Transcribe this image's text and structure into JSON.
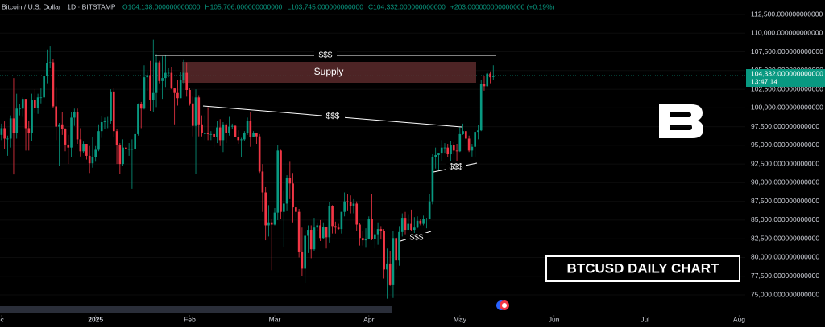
{
  "header": {
    "symbol": "Bitcoin / U.S. Dollar · 1D · BITSTAMP",
    "ohlc": [
      "O104,138.000000000000",
      "H105,706.000000000000",
      "L103,745.000000000000",
      "C104,332.000000000000",
      "+203.000000000000000 (+0.19%)"
    ]
  },
  "price_tag": {
    "price": "104,332.000000000000",
    "countdown": "13:47:14"
  },
  "annotations": {
    "liquidity": [
      "$$$",
      "$$$",
      "$$$",
      "$$$"
    ],
    "zone": "Supply",
    "badge": "BTCUSD DAILY CHART"
  },
  "chart_data": {
    "type": "candlestick",
    "up_color": "#089981",
    "down_color": "#f23645",
    "ylim": [
      75000,
      112500
    ],
    "yticks": [
      {
        "value": 75000,
        "label": "75,000.000000000000"
      },
      {
        "value": 77500,
        "label": "77,500.000000000000"
      },
      {
        "value": 80000,
        "label": "80,000.000000000000"
      },
      {
        "value": 82500,
        "label": "82,500.000000000000"
      },
      {
        "value": 85000,
        "label": "85,000.000000000000"
      },
      {
        "value": 87500,
        "label": "87,500.000000000000"
      },
      {
        "value": 90000,
        "label": "90,000.000000000000"
      },
      {
        "value": 92500,
        "label": "92,500.000000000000"
      },
      {
        "value": 95000,
        "label": "95,000.000000000000"
      },
      {
        "value": 97500,
        "label": "97,500.000000000000"
      },
      {
        "value": 100000,
        "label": "100,000.000000000000"
      },
      {
        "value": 102500,
        "label": "102,500.000000000000"
      },
      {
        "value": 105000,
        "label": "105,000.000000000000"
      },
      {
        "value": 107500,
        "label": "107,500.000000000000"
      },
      {
        "value": 110000,
        "label": "110,000.000000000000"
      },
      {
        "value": 112500,
        "label": "112,500.000000000000"
      }
    ],
    "xlim": [
      -0.5,
      245
    ],
    "xticks": [
      {
        "value": 0,
        "label": "ec"
      },
      {
        "value": 31,
        "label": "2025"
      },
      {
        "value": 62,
        "label": "Feb"
      },
      {
        "value": 90,
        "label": "Mar"
      },
      {
        "value": 121,
        "label": "Apr"
      },
      {
        "value": 151,
        "label": "May"
      },
      {
        "value": 182,
        "label": "Jun"
      },
      {
        "value": 212,
        "label": "Jul"
      },
      {
        "value": 243,
        "label": "Aug"
      }
    ],
    "last_price": 104332,
    "candles": [
      [
        96400,
        97900,
        95700,
        97300
      ],
      [
        97300,
        98200,
        94500,
        95900
      ],
      [
        95900,
        96300,
        93600,
        95900
      ],
      [
        95900,
        99000,
        94700,
        98600
      ],
      [
        98600,
        104000,
        91100,
        96600
      ],
      [
        96600,
        101900,
        95900,
        99900
      ],
      [
        99900,
        100500,
        99000,
        99900
      ],
      [
        99900,
        101400,
        98800,
        101200
      ],
      [
        101200,
        101200,
        94300,
        97300
      ],
      [
        97300,
        98300,
        94300,
        96600
      ],
      [
        96600,
        101900,
        95600,
        101100
      ],
      [
        101100,
        102500,
        99300,
        100000
      ],
      [
        100000,
        101900,
        99200,
        101400
      ],
      [
        101400,
        102600,
        100600,
        101400
      ],
      [
        101400,
        105100,
        101200,
        104300
      ],
      [
        104300,
        107800,
        103300,
        106000
      ],
      [
        106000,
        108300,
        105300,
        106100
      ],
      [
        106100,
        106500,
        100000,
        100200
      ],
      [
        100200,
        102800,
        95700,
        97500
      ],
      [
        97500,
        98000,
        92200,
        97800
      ],
      [
        97800,
        99500,
        96400,
        97200
      ],
      [
        97200,
        97300,
        94200,
        95100
      ],
      [
        95100,
        96400,
        92500,
        94700
      ],
      [
        94700,
        99400,
        93400,
        98700
      ],
      [
        98700,
        99900,
        97600,
        99400
      ],
      [
        99400,
        99900,
        95200,
        95800
      ],
      [
        95800,
        97300,
        93500,
        94200
      ],
      [
        94200,
        95500,
        94000,
        95200
      ],
      [
        95200,
        95200,
        93100,
        93600
      ],
      [
        93600,
        94900,
        91300,
        92600
      ],
      [
        92600,
        96100,
        92000,
        93400
      ],
      [
        93400,
        94900,
        92800,
        94400
      ],
      [
        94400,
        97800,
        94200,
        96900
      ],
      [
        96900,
        98900,
        96000,
        98100
      ],
      [
        98100,
        98700,
        97200,
        98200
      ],
      [
        98200,
        98800,
        97300,
        98300
      ],
      [
        98300,
        102500,
        97900,
        102200
      ],
      [
        102200,
        102700,
        96100,
        96900
      ],
      [
        96900,
        97200,
        92500,
        95000
      ],
      [
        95000,
        95300,
        91200,
        92500
      ],
      [
        92500,
        95800,
        92200,
        94700
      ],
      [
        94700,
        94900,
        93800,
        94500
      ],
      [
        94500,
        95300,
        93600,
        94500
      ],
      [
        94500,
        95800,
        89200,
        94500
      ],
      [
        94500,
        97300,
        94300,
        96500
      ],
      [
        96500,
        100600,
        96300,
        100500
      ],
      [
        100500,
        100800,
        97300,
        99900
      ],
      [
        99900,
        105700,
        99800,
        104100
      ],
      [
        104100,
        104900,
        102300,
        104400
      ],
      [
        104400,
        106300,
        99600,
        101100
      ],
      [
        101100,
        109100,
        99500,
        102000
      ],
      [
        102000,
        107200,
        100100,
        106100
      ],
      [
        106100,
        106300,
        103300,
        103600
      ],
      [
        103600,
        106900,
        101200,
        104000
      ],
      [
        104000,
        107100,
        102800,
        104700
      ],
      [
        104700,
        105300,
        104100,
        104700
      ],
      [
        104700,
        105500,
        102500,
        102600
      ],
      [
        102600,
        102700,
        97800,
        102000
      ],
      [
        102000,
        103700,
        100300,
        101300
      ],
      [
        101300,
        104800,
        101300,
        103700
      ],
      [
        103700,
        106400,
        103300,
        104700
      ],
      [
        104700,
        106100,
        101500,
        102400
      ],
      [
        102400,
        102700,
        100300,
        100600
      ],
      [
        100600,
        101500,
        96200,
        97600
      ],
      [
        97600,
        102500,
        91200,
        101400
      ],
      [
        101400,
        101700,
        96200,
        97800
      ],
      [
        97800,
        99000,
        96200,
        96600
      ],
      [
        96600,
        99000,
        95700,
        96600
      ],
      [
        96600,
        100100,
        95700,
        96500
      ],
      [
        96500,
        96900,
        95700,
        96500
      ],
      [
        96500,
        97300,
        94700,
        96100
      ],
      [
        96100,
        98300,
        95300,
        97400
      ],
      [
        97400,
        98500,
        94900,
        95700
      ],
      [
        95700,
        98100,
        94100,
        97800
      ],
      [
        97800,
        98000,
        95300,
        96600
      ],
      [
        96600,
        98800,
        96300,
        97500
      ],
      [
        97500,
        97900,
        97200,
        97600
      ],
      [
        97600,
        97700,
        96100,
        96100
      ],
      [
        96100,
        97000,
        95200,
        95700
      ],
      [
        95700,
        96000,
        93400,
        95800
      ],
      [
        95800,
        96900,
        95600,
        96600
      ],
      [
        96600,
        98700,
        96400,
        98300
      ],
      [
        98300,
        99500,
        94800,
        96100
      ],
      [
        96100,
        96900,
        96100,
        96600
      ],
      [
        96600,
        96700,
        95200,
        96200
      ],
      [
        96200,
        96500,
        91300,
        91500
      ],
      [
        91500,
        92500,
        86100,
        88700
      ],
      [
        88700,
        89400,
        82300,
        84300
      ],
      [
        84300,
        87000,
        82800,
        84700
      ],
      [
        84700,
        85100,
        78300,
        84400
      ],
      [
        84400,
        86600,
        84300,
        86000
      ],
      [
        86000,
        95000,
        85000,
        94300
      ],
      [
        94300,
        94400,
        85100,
        86100
      ],
      [
        86100,
        88900,
        81400,
        87200
      ],
      [
        87200,
        91000,
        86300,
        90600
      ],
      [
        90600,
        92800,
        87800,
        89900
      ],
      [
        89900,
        91300,
        84700,
        86700
      ],
      [
        86700,
        86900,
        85300,
        86100
      ],
      [
        86100,
        86500,
        80000,
        80700
      ],
      [
        80700,
        84000,
        77500,
        78500
      ],
      [
        78500,
        83600,
        76600,
        82900
      ],
      [
        82900,
        84300,
        80600,
        83700
      ],
      [
        83700,
        84300,
        79900,
        81100
      ],
      [
        81100,
        85300,
        80800,
        84000
      ],
      [
        84000,
        84700,
        83600,
        84300
      ],
      [
        84300,
        85000,
        82200,
        82600
      ],
      [
        82600,
        84700,
        82500,
        84100
      ],
      [
        84100,
        84100,
        81200,
        82700
      ],
      [
        82700,
        87400,
        82000,
        86900
      ],
      [
        86900,
        87000,
        83200,
        84200
      ],
      [
        84200,
        84800,
        83200,
        84000
      ],
      [
        84000,
        84500,
        83700,
        83800
      ],
      [
        83800,
        86100,
        83200,
        86100
      ],
      [
        86100,
        88700,
        85500,
        87500
      ],
      [
        87500,
        88500,
        86300,
        87400
      ],
      [
        87400,
        88300,
        85900,
        86900
      ],
      [
        86900,
        87800,
        85900,
        87200
      ],
      [
        87200,
        87500,
        83600,
        84400
      ],
      [
        84400,
        84600,
        81600,
        82600
      ],
      [
        82600,
        83500,
        81600,
        82300
      ],
      [
        82300,
        83900,
        81300,
        82500
      ],
      [
        82500,
        85500,
        82400,
        85200
      ],
      [
        85200,
        88500,
        82300,
        82500
      ],
      [
        82500,
        83900,
        81200,
        83100
      ],
      [
        83100,
        84700,
        81700,
        83800
      ],
      [
        83800,
        84200,
        82400,
        83500
      ],
      [
        83500,
        83800,
        77200,
        78400
      ],
      [
        78400,
        81200,
        74500,
        79200
      ],
      [
        79200,
        80800,
        76200,
        76300
      ],
      [
        76300,
        83600,
        74600,
        82600
      ],
      [
        82600,
        82700,
        78400,
        79600
      ],
      [
        79600,
        84200,
        78900,
        83400
      ],
      [
        83400,
        85900,
        82800,
        85300
      ],
      [
        85300,
        86100,
        83100,
        83700
      ],
      [
        83700,
        85800,
        83700,
        84500
      ],
      [
        84500,
        86400,
        83600,
        83700
      ],
      [
        83700,
        85400,
        83100,
        84000
      ],
      [
        84000,
        85500,
        83900,
        84900
      ],
      [
        84900,
        85100,
        84300,
        84500
      ],
      [
        84500,
        85600,
        84300,
        85100
      ],
      [
        85100,
        85300,
        83900,
        85200
      ],
      [
        85200,
        88500,
        85100,
        87500
      ],
      [
        87500,
        93800,
        87100,
        93400
      ],
      [
        93400,
        94700,
        91900,
        93700
      ],
      [
        93700,
        94000,
        91700,
        93900
      ],
      [
        93900,
        95700,
        92900,
        94700
      ],
      [
        94700,
        95300,
        93900,
        94700
      ],
      [
        94700,
        95200,
        93400,
        93800
      ],
      [
        93800,
        95600,
        92900,
        95000
      ],
      [
        95000,
        95400,
        93800,
        94300
      ],
      [
        94300,
        95200,
        92900,
        94200
      ],
      [
        94200,
        97400,
        94100,
        96500
      ],
      [
        96500,
        97900,
        96400,
        96900
      ],
      [
        96900,
        96900,
        95700,
        95900
      ],
      [
        95900,
        96300,
        94100,
        94300
      ],
      [
        94300,
        95200,
        93500,
        94800
      ],
      [
        94800,
        96900,
        93400,
        96800
      ],
      [
        96800,
        97700,
        95800,
        97000
      ],
      [
        97000,
        103700,
        96900,
        103200
      ],
      [
        103200,
        104300,
        102300,
        102900
      ],
      [
        102900,
        104900,
        102800,
        104600
      ],
      [
        104600,
        104900,
        103300,
        104100
      ],
      [
        104138,
        105706,
        103745,
        104332
      ]
    ]
  }
}
